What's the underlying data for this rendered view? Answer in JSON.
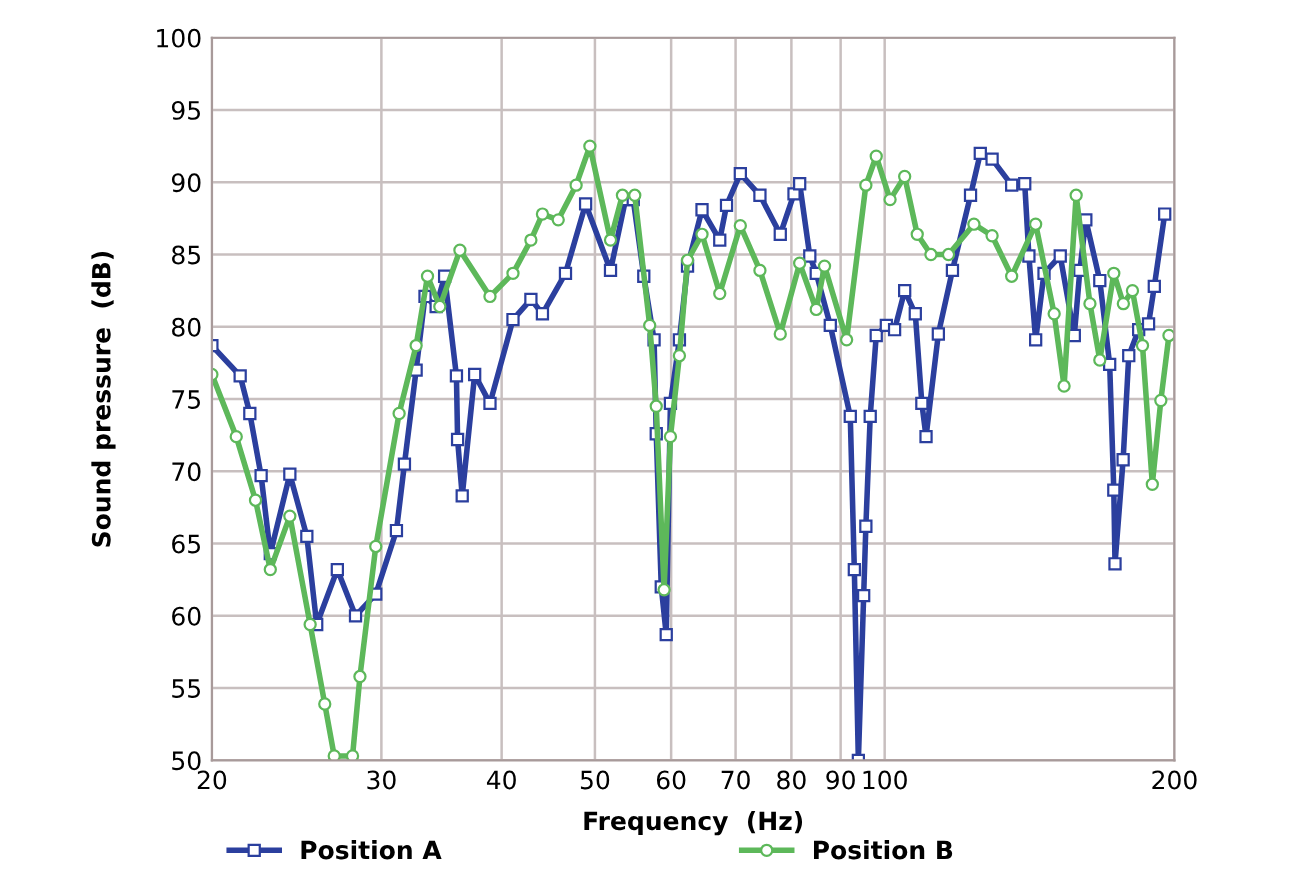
{
  "chart_data": {
    "type": "line",
    "xlabel": "Frequency  (Hz)",
    "ylabel": "Sound pressure  (dB)",
    "log": "x",
    "xlim": [
      20,
      200
    ],
    "xticks": [
      20,
      30,
      40,
      50,
      60,
      70,
      80,
      90,
      100,
      200
    ],
    "ylim": [
      50,
      100
    ],
    "yticks": [
      50,
      55,
      60,
      65,
      70,
      75,
      80,
      85,
      90,
      95,
      100
    ],
    "grid": true,
    "legend": "bottom",
    "line_style": "solid",
    "series": [
      {
        "name": "Position A",
        "color": "#2b3f9e",
        "marker": "square",
        "x": [
          20,
          21.4,
          21.9,
          22.5,
          23.0,
          24.1,
          25.1,
          25.7,
          27.0,
          28.2,
          29.6,
          31.1,
          31.7,
          32.6,
          33.3,
          34.2,
          34.9,
          35.9,
          36.0,
          36.4,
          37.5,
          38.9,
          41.1,
          42.9,
          44.1,
          46.6,
          48.9,
          51.9,
          53.8,
          54.8,
          56.2,
          57.6,
          57.9,
          58.6,
          59.3,
          59.9,
          61.2,
          62.4,
          64.6,
          67.4,
          68.5,
          70.8,
          74.2,
          77.9,
          80.5,
          81.6,
          83.6,
          84.9,
          87.8,
          92.1,
          93.0,
          93.9,
          95.1,
          95.6,
          96.6,
          98.0,
          100.4,
          102.4,
          104.9,
          107.6,
          109.3,
          110.4,
          113.7,
          117.6,
          122.8,
          125.7,
          129.3,
          135.5,
          139.8,
          141.2,
          143.5,
          146.4,
          152.2,
          157.4,
          159.5,
          161.8,
          167.3,
          171.3,
          173.0,
          173.5,
          176.9,
          179.3,
          183.6,
          188.0,
          190.6,
          195.4
        ],
        "values": [
          78.7,
          76.6,
          74,
          69.7,
          64.3,
          69.8,
          65.5,
          59.4,
          63.2,
          60,
          61.5,
          65.9,
          70.5,
          77,
          82.1,
          81.4,
          83.5,
          76.6,
          72.2,
          68.3,
          76.7,
          74.7,
          80.5,
          81.9,
          80.9,
          83.7,
          88.5,
          83.9,
          88.8,
          88.8,
          83.5,
          79.1,
          72.6,
          62,
          58.7,
          74.7,
          79.1,
          84.2,
          88.1,
          86,
          88.4,
          90.6,
          89.1,
          86.4,
          89.2,
          89.9,
          84.9,
          83.7,
          80.1,
          73.8,
          63.2,
          50,
          61.4,
          66.2,
          73.8,
          79.4,
          80.1,
          79.8,
          82.5,
          80.9,
          74.7,
          72.4,
          79.5,
          83.9,
          89.1,
          92,
          91.6,
          89.8,
          89.9,
          84.9,
          79.1,
          83.7,
          84.9,
          79.4,
          83.9,
          87.4,
          83.2,
          77.4,
          68.7,
          63.6,
          70.8,
          78,
          79.8,
          80.2,
          82.8,
          87.8
        ]
      },
      {
        "name": "Position B",
        "color": "#5db85a",
        "marker": "circle",
        "x": [
          20,
          21.2,
          22.2,
          23.0,
          24.1,
          25.3,
          26.2,
          26.8,
          28.0,
          28.5,
          29.6,
          31.3,
          32.6,
          33.5,
          34.5,
          36.2,
          38.9,
          41.1,
          42.9,
          44.1,
          45.8,
          47.8,
          49.4,
          51.9,
          53.4,
          55.0,
          57.0,
          57.9,
          59.0,
          59.9,
          61.2,
          62.4,
          64.6,
          67.4,
          70.8,
          74.2,
          77.9,
          81.6,
          84.9,
          86.6,
          91.3,
          95.6,
          98.0,
          101.3,
          104.9,
          108.1,
          111.7,
          116.5,
          123.8,
          129.3,
          135.5,
          143.5,
          150.0,
          153.6,
          158.1,
          163.4,
          167.3,
          173.0,
          177.0,
          180.9,
          185.3,
          189.7,
          193.6,
          197.4
        ],
        "values": [
          76.7,
          72.4,
          68,
          63.2,
          66.9,
          59.4,
          53.9,
          50.3,
          50.3,
          55.8,
          64.8,
          74,
          78.7,
          83.5,
          81.4,
          85.3,
          82.1,
          83.7,
          86,
          87.8,
          87.4,
          89.8,
          92.5,
          86,
          89.1,
          89.1,
          80.1,
          74.5,
          61.8,
          72.4,
          78,
          84.6,
          86.4,
          82.3,
          87,
          83.9,
          79.5,
          84.4,
          81.2,
          84.2,
          79.1,
          89.8,
          91.8,
          88.8,
          90.4,
          86.4,
          85,
          85,
          87.1,
          86.3,
          83.5,
          87.1,
          80.9,
          75.9,
          89.1,
          81.6,
          77.7,
          83.7,
          81.6,
          82.5,
          78.7,
          69.1,
          74.9,
          79.4
        ]
      }
    ]
  }
}
